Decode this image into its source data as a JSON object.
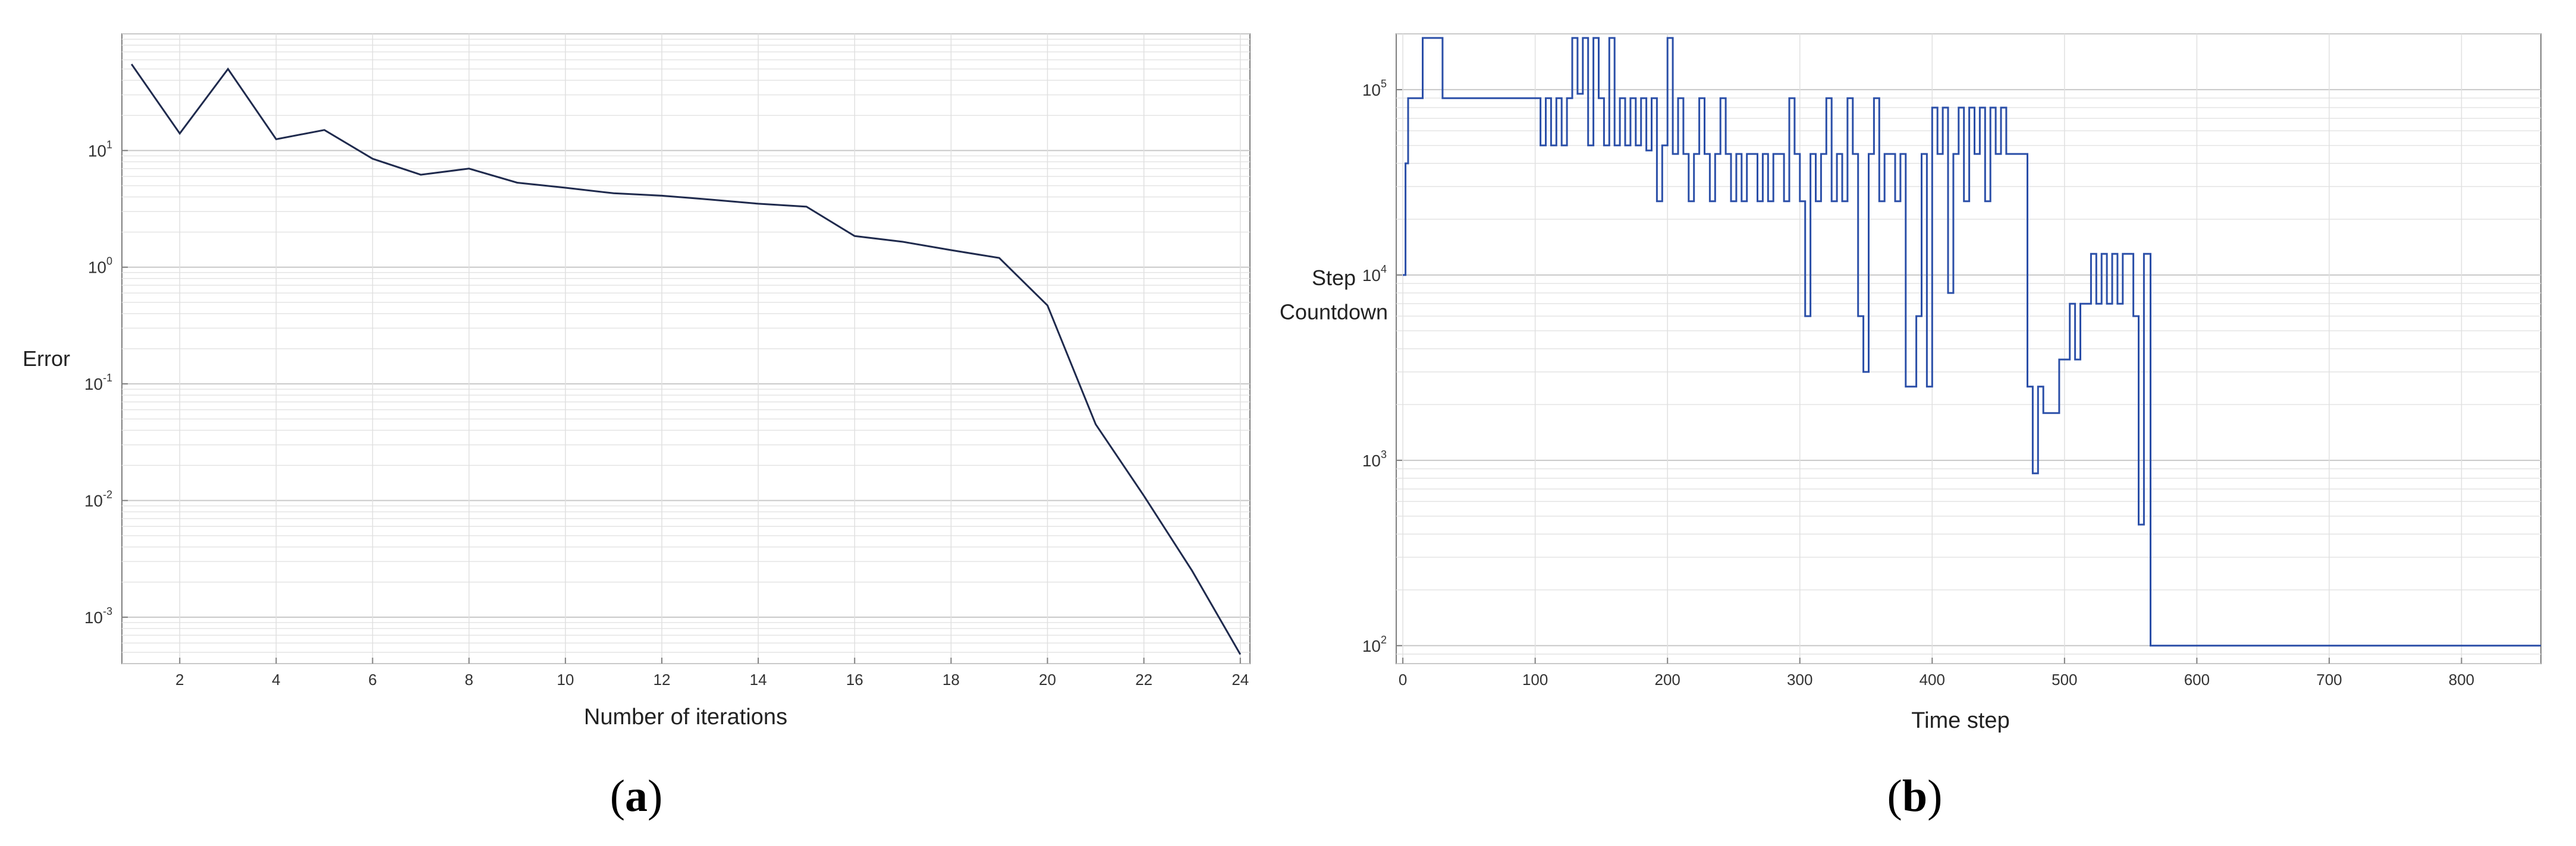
{
  "colors": {
    "plot_a_line": "#1f2a4d",
    "plot_b_line": "#2b4fa8",
    "plot_b_dark": "#102040",
    "grid": "#d9d9d9",
    "axis": "#7f7f7f"
  },
  "chart_data": [
    {
      "type": "line",
      "caption_letter": "a",
      "xlabel": "Number of iterations",
      "ylabel": "Error",
      "xlim": [
        0.8,
        24.2
      ],
      "ylim": [
        0.0004,
        100
      ],
      "yscale": "log",
      "grid": true,
      "x_tick_labels": [
        "2",
        "4",
        "6",
        "8",
        "10",
        "12",
        "14",
        "16",
        "18",
        "20",
        "22",
        "24"
      ],
      "y_tick_labels": [
        {
          "base": "10",
          "exp": "1"
        },
        {
          "base": "10",
          "exp": "0"
        },
        {
          "base": "10",
          "exp": "-1"
        },
        {
          "base": "10",
          "exp": "-2"
        },
        {
          "base": "10",
          "exp": "-3"
        }
      ],
      "series": [
        {
          "x": [
            1,
            2,
            3,
            4,
            5,
            6,
            7,
            8,
            9,
            10,
            11,
            12,
            13,
            14,
            15,
            16,
            17,
            18,
            19,
            20,
            21,
            22,
            23,
            24
          ],
          "y": [
            55,
            14,
            50,
            12.5,
            15,
            8.5,
            6.2,
            7,
            5.3,
            4.8,
            4.3,
            4.1,
            3.8,
            3.5,
            3.3,
            1.85,
            1.65,
            1.4,
            1.2,
            0.47,
            0.045,
            0.011,
            0.0025,
            0.00048
          ]
        }
      ]
    },
    {
      "type": "line",
      "caption_letter": "b",
      "xlabel": "Time step",
      "ylabel": "Step\nCountdown",
      "xlim": [
        -5,
        860
      ],
      "ylim": [
        80,
        200000
      ],
      "yscale": "log",
      "grid": true,
      "x_tick_labels": [
        "0",
        "100",
        "200",
        "300",
        "400",
        "500",
        "600",
        "700",
        "800"
      ],
      "y_tick_labels": [
        {
          "base": "10",
          "exp": "5"
        },
        {
          "base": "10",
          "exp": "4"
        },
        {
          "base": "10",
          "exp": "3"
        },
        {
          "base": "10",
          "exp": "2"
        }
      ],
      "series": [
        {
          "x": [
            0,
            2,
            4,
            6,
            10,
            15,
            25,
            30,
            60,
            100,
            104,
            108,
            112,
            116,
            120,
            124,
            128,
            132,
            136,
            140,
            144,
            148,
            152,
            156,
            160,
            164,
            168,
            172,
            176,
            180,
            184,
            188,
            192,
            196,
            200,
            204,
            208,
            212,
            216,
            220,
            224,
            228,
            232,
            236,
            240,
            244,
            248,
            252,
            256,
            260,
            264,
            268,
            272,
            276,
            280,
            284,
            288,
            292,
            296,
            300,
            304,
            308,
            312,
            316,
            320,
            324,
            328,
            332,
            336,
            340,
            344,
            348,
            352,
            356,
            360,
            364,
            368,
            372,
            376,
            380,
            384,
            388,
            392,
            396,
            400,
            404,
            408,
            412,
            416,
            420,
            424,
            428,
            432,
            436,
            440,
            444,
            448,
            452,
            456,
            460,
            464,
            468,
            472,
            476,
            480,
            484,
            488,
            492,
            496,
            500,
            504,
            508,
            512,
            516,
            520,
            524,
            528,
            532,
            536,
            540,
            544,
            548,
            552,
            556,
            560,
            565,
            600,
            700,
            800,
            860
          ],
          "y": [
            10000,
            40000,
            90000,
            90000,
            90000,
            190000,
            190000,
            90000,
            90000,
            90000,
            50000,
            90000,
            50000,
            90000,
            50000,
            90000,
            190000,
            95000,
            190000,
            50000,
            190000,
            90000,
            50000,
            190000,
            50000,
            90000,
            50000,
            90000,
            50000,
            90000,
            47000,
            90000,
            25000,
            50000,
            190000,
            45000,
            90000,
            45000,
            25000,
            45000,
            90000,
            45000,
            25000,
            45000,
            90000,
            45000,
            25000,
            45000,
            25000,
            45000,
            45000,
            25000,
            45000,
            25000,
            45000,
            45000,
            25000,
            90000,
            45000,
            25000,
            6000,
            45000,
            25000,
            45000,
            90000,
            25000,
            45000,
            25000,
            90000,
            45000,
            6000,
            3000,
            45000,
            90000,
            25000,
            45000,
            45000,
            25000,
            45000,
            2500,
            2500,
            6000,
            45000,
            2500,
            80000,
            45000,
            80000,
            8000,
            45000,
            80000,
            25000,
            80000,
            45000,
            80000,
            25000,
            80000,
            45000,
            80000,
            45000,
            45000,
            45000,
            45000,
            2500,
            850,
            2500,
            1800,
            1800,
            1800,
            3500,
            3500,
            7000,
            3500,
            7000,
            7000,
            13000,
            7000,
            13000,
            7000,
            13000,
            7000,
            13000,
            13000,
            6000,
            450,
            13000,
            100,
            100,
            100,
            100,
            100
          ]
        }
      ]
    }
  ]
}
